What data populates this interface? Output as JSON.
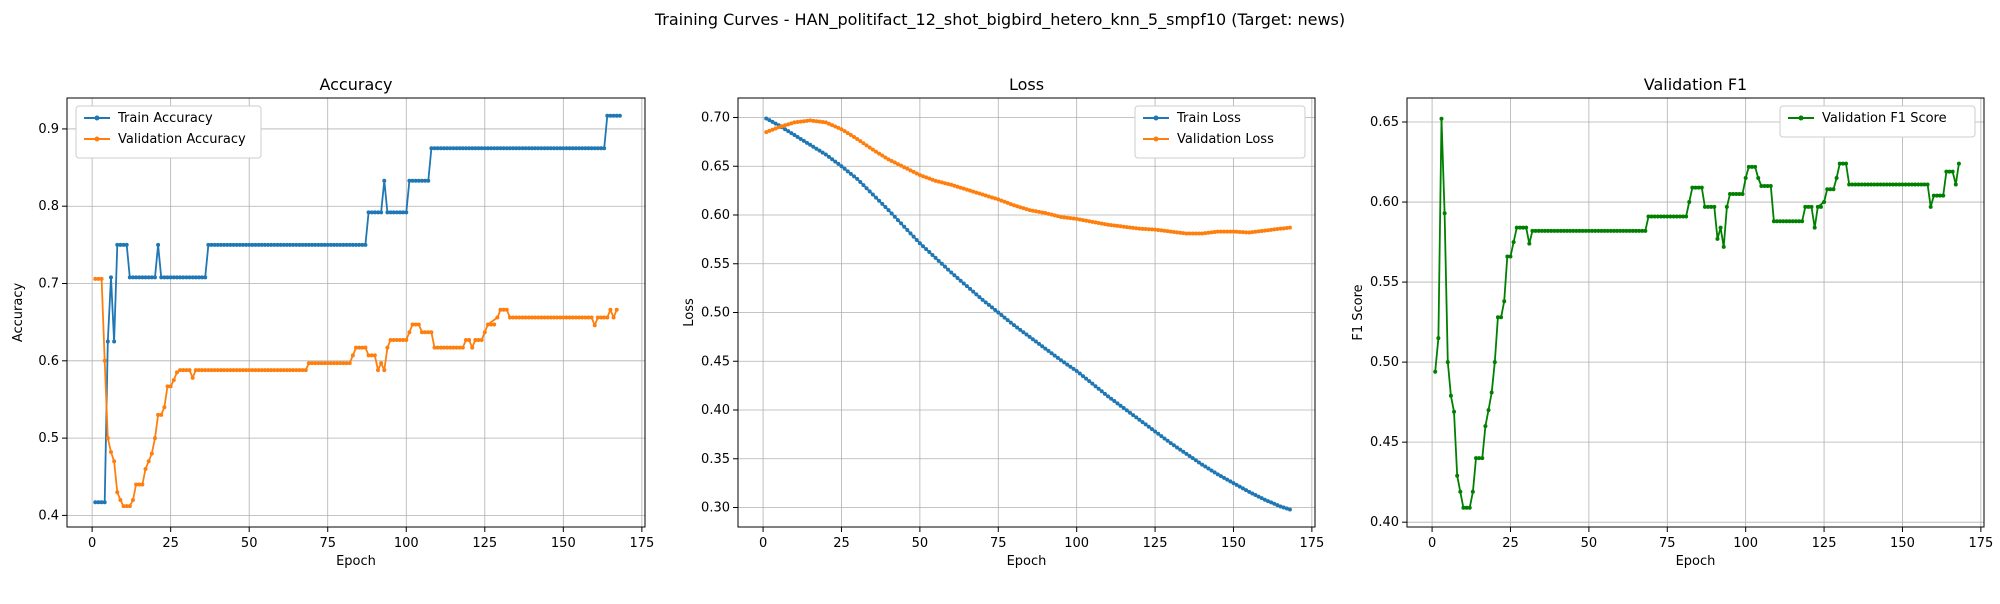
{
  "suptitle": "Training Curves - HAN_politifact_12_shot_bigbird_hetero_knn_5_smpf10 (Target: news)",
  "colors": {
    "blue": "#1f77b4",
    "orange": "#ff7f0e",
    "green": "#008000",
    "grid": "#b0b0b0"
  },
  "chart_data": [
    {
      "type": "line",
      "title": "Accuracy",
      "xlabel": "Epoch",
      "ylabel": "Accuracy",
      "xlim": [
        -8,
        176
      ],
      "ylim": [
        0.385,
        0.94
      ],
      "xticks": [
        0,
        25,
        50,
        75,
        100,
        125,
        150,
        175
      ],
      "yticks": [
        0.4,
        0.5,
        0.6,
        0.7,
        0.8,
        0.9
      ],
      "grid": true,
      "legend_position": "upper-left",
      "series": [
        {
          "name": "Train Accuracy",
          "color": "#1f77b4",
          "points": [
            [
              1,
              0.417
            ],
            [
              4,
              0.417
            ],
            [
              5,
              0.625
            ],
            [
              6,
              0.708
            ],
            [
              7,
              0.625
            ],
            [
              8,
              0.75
            ],
            [
              11,
              0.75
            ],
            [
              12,
              0.708
            ],
            [
              20,
              0.708
            ],
            [
              21,
              0.75
            ],
            [
              22,
              0.708
            ],
            [
              36,
              0.708
            ],
            [
              37,
              0.75
            ],
            [
              87,
              0.75
            ],
            [
              88,
              0.792
            ],
            [
              92,
              0.792
            ],
            [
              93,
              0.833
            ],
            [
              94,
              0.792
            ],
            [
              100,
              0.792
            ],
            [
              101,
              0.833
            ],
            [
              107,
              0.833
            ],
            [
              108,
              0.875
            ],
            [
              163,
              0.875
            ],
            [
              164,
              0.917
            ],
            [
              168,
              0.917
            ]
          ]
        },
        {
          "name": "Validation Accuracy",
          "color": "#ff7f0e",
          "points": [
            [
              1,
              0.706
            ],
            [
              3,
              0.706
            ],
            [
              4,
              0.6
            ],
            [
              5,
              0.5
            ],
            [
              6,
              0.482
            ],
            [
              7,
              0.47
            ],
            [
              8,
              0.43
            ],
            [
              9,
              0.42
            ],
            [
              10,
              0.412
            ],
            [
              12,
              0.412
            ],
            [
              13,
              0.42
            ],
            [
              14,
              0.44
            ],
            [
              16,
              0.44
            ],
            [
              17,
              0.46
            ],
            [
              18,
              0.47
            ],
            [
              19,
              0.48
            ],
            [
              20,
              0.5
            ],
            [
              21,
              0.53
            ],
            [
              22,
              0.53
            ],
            [
              23,
              0.54
            ],
            [
              24,
              0.567
            ],
            [
              25,
              0.567
            ],
            [
              26,
              0.575
            ],
            [
              27,
              0.585
            ],
            [
              28,
              0.588
            ],
            [
              31,
              0.588
            ],
            [
              32,
              0.578
            ],
            [
              33,
              0.588
            ],
            [
              68,
              0.588
            ],
            [
              69,
              0.597
            ],
            [
              82,
              0.597
            ],
            [
              83,
              0.607
            ],
            [
              84,
              0.617
            ],
            [
              87,
              0.617
            ],
            [
              88,
              0.607
            ],
            [
              90,
              0.607
            ],
            [
              91,
              0.588
            ],
            [
              92,
              0.597
            ],
            [
              93,
              0.588
            ],
            [
              94,
              0.617
            ],
            [
              95,
              0.627
            ],
            [
              100,
              0.627
            ],
            [
              101,
              0.637
            ],
            [
              102,
              0.647
            ],
            [
              104,
              0.647
            ],
            [
              105,
              0.637
            ],
            [
              108,
              0.637
            ],
            [
              109,
              0.617
            ],
            [
              118,
              0.617
            ],
            [
              119,
              0.627
            ],
            [
              120,
              0.627
            ],
            [
              121,
              0.617
            ],
            [
              122,
              0.627
            ],
            [
              124,
              0.627
            ],
            [
              125,
              0.637
            ],
            [
              126,
              0.647
            ],
            [
              129,
              0.656
            ],
            [
              130,
              0.666
            ],
            [
              132,
              0.666
            ],
            [
              133,
              0.656
            ],
            [
              159,
              0.656
            ],
            [
              160,
              0.646
            ],
            [
              161,
              0.656
            ],
            [
              164,
              0.656
            ],
            [
              165,
              0.666
            ],
            [
              166,
              0.656
            ],
            [
              167,
              0.666
            ]
          ]
        }
      ]
    },
    {
      "type": "line",
      "title": "Loss",
      "xlabel": "Epoch",
      "ylabel": "Loss",
      "xlim": [
        -8,
        176
      ],
      "ylim": [
        0.28,
        0.72
      ],
      "xticks": [
        0,
        25,
        50,
        75,
        100,
        125,
        150,
        175
      ],
      "yticks": [
        0.3,
        0.35,
        0.4,
        0.45,
        0.5,
        0.55,
        0.6,
        0.65,
        0.7
      ],
      "grid": true,
      "legend_position": "upper-right",
      "series": [
        {
          "name": "Train Loss",
          "color": "#1f77b4",
          "points": [
            [
              1,
              0.699
            ],
            [
              5,
              0.692
            ],
            [
              10,
              0.682
            ],
            [
              15,
              0.672
            ],
            [
              20,
              0.662
            ],
            [
              25,
              0.65
            ],
            [
              30,
              0.637
            ],
            [
              35,
              0.621
            ],
            [
              40,
              0.605
            ],
            [
              45,
              0.588
            ],
            [
              50,
              0.571
            ],
            [
              55,
              0.556
            ],
            [
              60,
              0.541
            ],
            [
              65,
              0.527
            ],
            [
              70,
              0.513
            ],
            [
              75,
              0.5
            ],
            [
              80,
              0.487
            ],
            [
              85,
              0.475
            ],
            [
              90,
              0.463
            ],
            [
              95,
              0.451
            ],
            [
              100,
              0.44
            ],
            [
              105,
              0.427
            ],
            [
              110,
              0.414
            ],
            [
              115,
              0.402
            ],
            [
              120,
              0.39
            ],
            [
              125,
              0.378
            ],
            [
              130,
              0.366
            ],
            [
              135,
              0.355
            ],
            [
              140,
              0.344
            ],
            [
              145,
              0.334
            ],
            [
              150,
              0.325
            ],
            [
              155,
              0.316
            ],
            [
              160,
              0.308
            ],
            [
              165,
              0.301
            ],
            [
              168,
              0.298
            ]
          ]
        },
        {
          "name": "Validation Loss",
          "color": "#ff7f0e",
          "points": [
            [
              1,
              0.685
            ],
            [
              5,
              0.69
            ],
            [
              10,
              0.695
            ],
            [
              15,
              0.697
            ],
            [
              20,
              0.695
            ],
            [
              25,
              0.688
            ],
            [
              30,
              0.678
            ],
            [
              35,
              0.667
            ],
            [
              40,
              0.657
            ],
            [
              45,
              0.649
            ],
            [
              50,
              0.641
            ],
            [
              55,
              0.635
            ],
            [
              60,
              0.631
            ],
            [
              65,
              0.626
            ],
            [
              70,
              0.621
            ],
            [
              75,
              0.616
            ],
            [
              80,
              0.61
            ],
            [
              85,
              0.605
            ],
            [
              90,
              0.602
            ],
            [
              95,
              0.598
            ],
            [
              100,
              0.596
            ],
            [
              105,
              0.593
            ],
            [
              110,
              0.59
            ],
            [
              115,
              0.588
            ],
            [
              120,
              0.586
            ],
            [
              125,
              0.585
            ],
            [
              130,
              0.583
            ],
            [
              135,
              0.581
            ],
            [
              140,
              0.581
            ],
            [
              145,
              0.583
            ],
            [
              150,
              0.583
            ],
            [
              155,
              0.582
            ],
            [
              160,
              0.584
            ],
            [
              165,
              0.586
            ],
            [
              168,
              0.587
            ]
          ]
        }
      ]
    },
    {
      "type": "line",
      "title": "Validation F1",
      "xlabel": "Epoch",
      "ylabel": "F1 Score",
      "xlim": [
        -8,
        176
      ],
      "ylim": [
        0.397,
        0.665
      ],
      "xticks": [
        0,
        25,
        50,
        75,
        100,
        125,
        150,
        175
      ],
      "yticks": [
        0.4,
        0.45,
        0.5,
        0.55,
        0.6,
        0.65
      ],
      "grid": true,
      "legend_position": "upper-right",
      "series": [
        {
          "name": "Validation F1 Score",
          "color": "#008000",
          "points": [
            [
              1,
              0.494
            ],
            [
              2,
              0.515
            ],
            [
              3,
              0.652
            ],
            [
              4,
              0.593
            ],
            [
              5,
              0.5
            ],
            [
              6,
              0.479
            ],
            [
              7,
              0.469
            ],
            [
              8,
              0.429
            ],
            [
              9,
              0.419
            ],
            [
              10,
              0.409
            ],
            [
              12,
              0.409
            ],
            [
              13,
              0.419
            ],
            [
              14,
              0.44
            ],
            [
              16,
              0.44
            ],
            [
              17,
              0.46
            ],
            [
              18,
              0.47
            ],
            [
              19,
              0.481
            ],
            [
              20,
              0.5
            ],
            [
              21,
              0.528
            ],
            [
              22,
              0.528
            ],
            [
              23,
              0.538
            ],
            [
              24,
              0.566
            ],
            [
              25,
              0.566
            ],
            [
              26,
              0.575
            ],
            [
              27,
              0.584
            ],
            [
              30,
              0.584
            ],
            [
              31,
              0.574
            ],
            [
              32,
              0.582
            ],
            [
              68,
              0.582
            ],
            [
              69,
              0.591
            ],
            [
              81,
              0.591
            ],
            [
              82,
              0.6
            ],
            [
              83,
              0.609
            ],
            [
              86,
              0.609
            ],
            [
              87,
              0.597
            ],
            [
              90,
              0.597
            ],
            [
              91,
              0.577
            ],
            [
              92,
              0.584
            ],
            [
              93,
              0.572
            ],
            [
              94,
              0.597
            ],
            [
              95,
              0.605
            ],
            [
              99,
              0.605
            ],
            [
              100,
              0.615
            ],
            [
              101,
              0.622
            ],
            [
              103,
              0.622
            ],
            [
              104,
              0.615
            ],
            [
              105,
              0.61
            ],
            [
              108,
              0.61
            ],
            [
              109,
              0.588
            ],
            [
              118,
              0.588
            ],
            [
              119,
              0.597
            ],
            [
              121,
              0.597
            ],
            [
              122,
              0.584
            ],
            [
              123,
              0.597
            ],
            [
              125,
              0.6
            ],
            [
              126,
              0.608
            ],
            [
              128,
              0.608
            ],
            [
              129,
              0.615
            ],
            [
              130,
              0.624
            ],
            [
              132,
              0.624
            ],
            [
              133,
              0.611
            ],
            [
              158,
              0.611
            ],
            [
              159,
              0.597
            ],
            [
              160,
              0.604
            ],
            [
              163,
              0.604
            ],
            [
              164,
              0.619
            ],
            [
              166,
              0.619
            ],
            [
              167,
              0.611
            ],
            [
              168,
              0.624
            ]
          ]
        }
      ]
    }
  ]
}
